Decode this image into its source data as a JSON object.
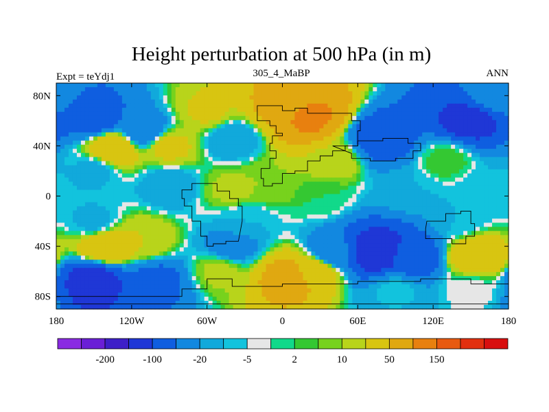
{
  "chart_data": {
    "type": "heatmap",
    "title": "Height perturbation at 500 hPa (in m)",
    "subtitle_left": "Expt = teYdj1",
    "subtitle_center": "305_4_MaBP",
    "subtitle_right": "ANN",
    "x_range": [
      -180,
      180
    ],
    "y_range": [
      -90,
      90
    ],
    "x_ticks": [
      {
        "value": -180,
        "label": "180"
      },
      {
        "value": -120,
        "label": "120W"
      },
      {
        "value": -60,
        "label": "60W"
      },
      {
        "value": 0,
        "label": "0"
      },
      {
        "value": 60,
        "label": "60E"
      },
      {
        "value": 120,
        "label": "120E"
      },
      {
        "value": 180,
        "label": "180"
      }
    ],
    "y_ticks": [
      {
        "value": 80,
        "label": "80N"
      },
      {
        "value": 40,
        "label": "40N"
      },
      {
        "value": 0,
        "label": "0"
      },
      {
        "value": -40,
        "label": "40S"
      },
      {
        "value": -80,
        "label": "80S"
      }
    ],
    "colorbar": {
      "colors": [
        "#8a2be2",
        "#6a1fd6",
        "#3d1fc8",
        "#1f37d6",
        "#0f5ee0",
        "#1288e0",
        "#11a9db",
        "#12c3dd",
        "#e6e6e6",
        "#11d98a",
        "#34c832",
        "#77d21d",
        "#b8d41b",
        "#d8c511",
        "#e0a811",
        "#e8800f",
        "#e85a10",
        "#e2300f",
        "#d80f0f"
      ],
      "labels": [
        {
          "after_box": 1,
          "text": "-200"
        },
        {
          "after_box": 3,
          "text": "-100"
        },
        {
          "after_box": 5,
          "text": "-20"
        },
        {
          "after_box": 7,
          "text": "-5"
        },
        {
          "after_box": 9,
          "text": "2"
        },
        {
          "after_box": 11,
          "text": "10"
        },
        {
          "after_box": 13,
          "text": "50"
        },
        {
          "after_box": 15,
          "text": "150"
        }
      ]
    },
    "field_features": [
      {
        "lon": -150,
        "lat": 62,
        "value": -75
      },
      {
        "lon": -110,
        "lat": 52,
        "value": -40
      },
      {
        "lon": -60,
        "lat": 68,
        "value": 22
      },
      {
        "lon": 20,
        "lat": 63,
        "value": 110
      },
      {
        "lon": 0,
        "lat": 72,
        "value": 60
      },
      {
        "lon": 80,
        "lat": 45,
        "value": -80
      },
      {
        "lon": 150,
        "lat": 60,
        "value": -120
      },
      {
        "lon": 170,
        "lat": 80,
        "value": -25
      },
      {
        "lon": -135,
        "lat": 38,
        "value": 45
      },
      {
        "lon": -90,
        "lat": 40,
        "value": 25
      },
      {
        "lon": -40,
        "lat": 45,
        "value": -20
      },
      {
        "lon": 40,
        "lat": 28,
        "value": 18
      },
      {
        "lon": 130,
        "lat": 28,
        "value": 5
      },
      {
        "lon": -150,
        "lat": 20,
        "value": -12
      },
      {
        "lon": -90,
        "lat": 8,
        "value": -18
      },
      {
        "lon": -40,
        "lat": 5,
        "value": 12
      },
      {
        "lon": -10,
        "lat": 10,
        "value": 10
      },
      {
        "lon": 100,
        "lat": 5,
        "value": -10
      },
      {
        "lon": 160,
        "lat": 5,
        "value": -8
      },
      {
        "lon": 30,
        "lat": 0,
        "value": 2
      },
      {
        "lon": -150,
        "lat": -20,
        "value": -12
      },
      {
        "lon": -30,
        "lat": -20,
        "value": -10
      },
      {
        "lon": 140,
        "lat": -18,
        "value": -10
      },
      {
        "lon": -140,
        "lat": -40,
        "value": 50
      },
      {
        "lon": -110,
        "lat": -35,
        "value": 20
      },
      {
        "lon": -40,
        "lat": -40,
        "value": -30
      },
      {
        "lon": 40,
        "lat": -45,
        "value": -40
      },
      {
        "lon": 75,
        "lat": -45,
        "value": -150
      },
      {
        "lon": 100,
        "lat": -48,
        "value": -90
      },
      {
        "lon": 155,
        "lat": -48,
        "value": 45
      },
      {
        "lon": -150,
        "lat": -68,
        "value": -130
      },
      {
        "lon": -100,
        "lat": -68,
        "value": -60
      },
      {
        "lon": -50,
        "lat": -60,
        "value": 12
      },
      {
        "lon": 5,
        "lat": -65,
        "value": 70
      },
      {
        "lon": 25,
        "lat": -60,
        "value": 40
      },
      {
        "lon": 90,
        "lat": -75,
        "value": -8
      },
      {
        "lon": 150,
        "lat": -75,
        "value": -3
      }
    ]
  }
}
